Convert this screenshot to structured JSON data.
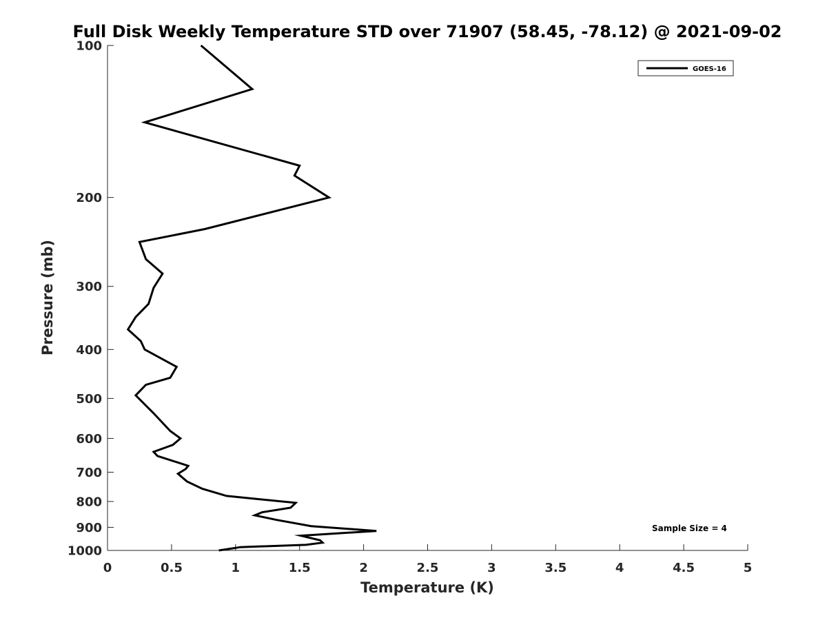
{
  "chart_data": {
    "type": "line",
    "title": "Full Disk Weekly Temperature STD over 71907 (58.45, -78.12) @ 2021-09-02",
    "xlabel": "Temperature (K)",
    "ylabel": "Pressure (mb)",
    "xlim": [
      0,
      5
    ],
    "ylim": [
      100,
      1000
    ],
    "yscale": "log",
    "y_direction": "reversed",
    "grid": false,
    "xticks": [
      "0",
      "0.5",
      "1",
      "1.5",
      "2",
      "2.5",
      "3",
      "3.5",
      "4",
      "4.5",
      "5"
    ],
    "yticks": [
      "100",
      "200",
      "300",
      "400",
      "500",
      "600",
      "700",
      "800",
      "900",
      "1000"
    ],
    "legend": {
      "location": "top-right",
      "entries": [
        "GOES-16"
      ]
    },
    "annotation": "Sample Size = 4",
    "series": [
      {
        "name": "GOES-16",
        "color": "#000000",
        "x": [
          0.73,
          1.13,
          0.29,
          1.5,
          1.46,
          1.73,
          0.76,
          0.25,
          0.3,
          0.43,
          0.36,
          0.32,
          0.22,
          0.16,
          0.26,
          0.29,
          0.54,
          0.49,
          0.3,
          0.22,
          0.36,
          0.49,
          0.57,
          0.51,
          0.36,
          0.39,
          0.63,
          0.61,
          0.55,
          0.62,
          0.74,
          0.93,
          1.47,
          1.43,
          1.21,
          1.15,
          1.32,
          1.59,
          2.1,
          1.51,
          1.66,
          1.68,
          1.55,
          1.04,
          0.87
        ],
        "y": [
          100,
          122,
          142,
          173,
          181,
          200,
          231,
          245,
          265,
          283,
          302,
          325,
          345,
          365,
          385,
          400,
          433,
          455,
          470,
          493,
          535,
          580,
          600,
          618,
          638,
          650,
          680,
          690,
          705,
          730,
          755,
          780,
          805,
          823,
          840,
          852,
          870,
          895,
          915,
          935,
          955,
          965,
          975,
          985,
          1000
        ]
      }
    ]
  }
}
